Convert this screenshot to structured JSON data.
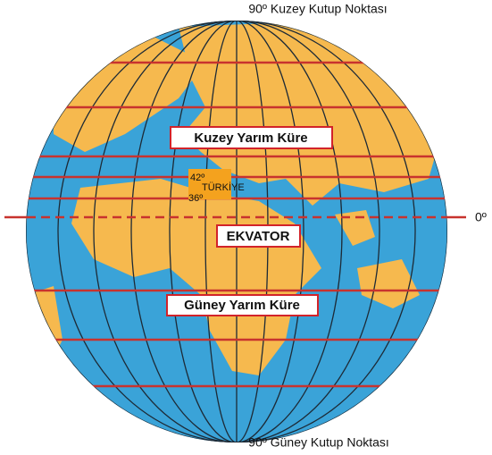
{
  "labels": {
    "north_pole": "90º Kuzey Kutup Noktası",
    "south_pole": "90º Güney Kutup Noktası",
    "equator_degree": "0º",
    "northern_hemisphere": "Kuzey Yarım Küre",
    "equator": "EKVATOR",
    "southern_hemisphere": "Güney Yarım Küre",
    "turkey": "TÜRKİYE",
    "lat_north": "42º",
    "lat_south": "36º"
  }
}
